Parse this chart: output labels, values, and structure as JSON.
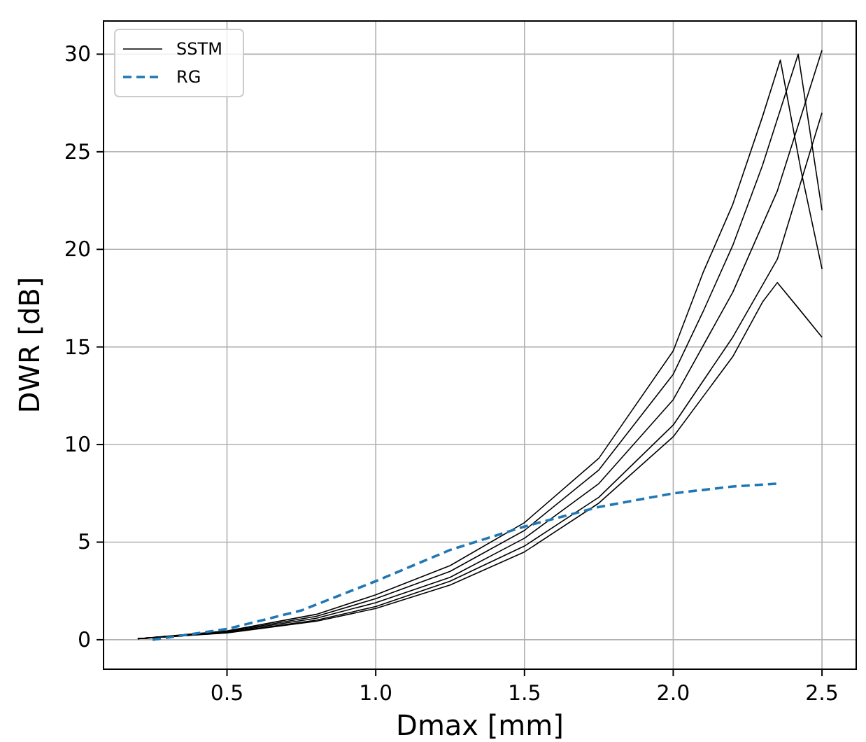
{
  "chart_data": {
    "type": "line",
    "xlabel": "Dmax [mm]",
    "ylabel": "DWR [dB]",
    "xlim": [
      0.085,
      2.615
    ],
    "ylim": [
      -1.51,
      31.7
    ],
    "xticks": [
      {
        "value": 0.5,
        "label": "0.5"
      },
      {
        "value": 1.0,
        "label": "1.0"
      },
      {
        "value": 1.5,
        "label": "1.5"
      },
      {
        "value": 2.0,
        "label": "2.0"
      },
      {
        "value": 2.5,
        "label": "2.5"
      }
    ],
    "yticks": [
      0,
      5,
      10,
      15,
      20,
      25,
      30
    ],
    "grid": true,
    "legend": "top left",
    "series": [
      {
        "name": "SSTM",
        "color": "#000000",
        "line_style": "solid",
        "x": [
          0.2,
          0.5,
          0.8,
          1.0,
          1.25,
          1.5,
          1.75,
          2.0,
          2.1,
          2.2,
          2.3,
          2.36,
          2.43,
          2.5
        ],
        "values": [
          0.05,
          0.45,
          1.3,
          2.3,
          3.8,
          6.0,
          9.3,
          14.8,
          18.8,
          22.3,
          26.8,
          29.7,
          24,
          19
        ]
      },
      {
        "color": "#000000",
        "line_style": "solid",
        "x": [
          0.2,
          0.5,
          0.8,
          1.0,
          1.25,
          1.5,
          1.75,
          2.0,
          2.1,
          2.2,
          2.3,
          2.42,
          2.5
        ],
        "values": [
          0.05,
          0.42,
          1.2,
          2.1,
          3.5,
          5.6,
          8.7,
          13.6,
          16.8,
          20.2,
          24.3,
          30.0,
          22
        ]
      },
      {
        "color": "#000000",
        "line_style": "solid",
        "x": [
          0.2,
          0.5,
          0.8,
          1.0,
          1.25,
          1.5,
          1.75,
          2.0,
          2.2,
          2.35,
          2.5
        ],
        "values": [
          0.05,
          0.4,
          1.1,
          1.9,
          3.2,
          5.2,
          8.0,
          12.3,
          17.8,
          23,
          30.2
        ]
      },
      {
        "color": "#000000",
        "line_style": "solid",
        "x": [
          0.2,
          0.5,
          0.8,
          1.0,
          1.25,
          1.5,
          1.75,
          2.0,
          2.2,
          2.35,
          2.5
        ],
        "values": [
          0.05,
          0.37,
          1.0,
          1.7,
          3.0,
          4.8,
          7.3,
          11.0,
          15.5,
          19.5,
          27
        ]
      },
      {
        "color": "#000000",
        "line_style": "solid",
        "x": [
          0.2,
          0.5,
          0.8,
          1.0,
          1.25,
          1.5,
          1.75,
          2.0,
          2.2,
          2.3,
          2.35,
          2.42,
          2.5
        ],
        "values": [
          0.05,
          0.35,
          0.95,
          1.6,
          2.8,
          4.5,
          7.0,
          10.4,
          14.5,
          17.3,
          18.3,
          17,
          15.5
        ]
      },
      {
        "name": "RG",
        "color": "#1f77b4",
        "line_style": "dashed",
        "x": [
          0.25,
          0.5,
          0.75,
          1.0,
          1.25,
          1.5,
          1.75,
          2.0,
          2.2,
          2.35
        ],
        "values": [
          0.0,
          0.55,
          1.5,
          3.0,
          4.6,
          5.8,
          6.8,
          7.5,
          7.85,
          8.0
        ]
      }
    ]
  }
}
